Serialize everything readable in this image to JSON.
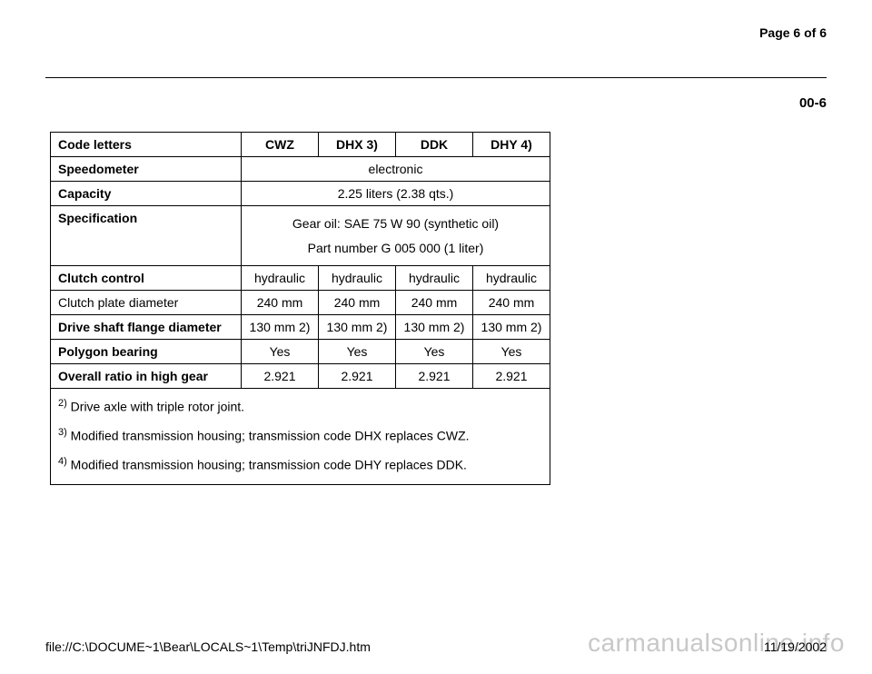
{
  "header": {
    "page_number": "Page 6 of 6",
    "section_number": "00-6"
  },
  "table": {
    "columns": {
      "label": "Code letters",
      "c1": "CWZ",
      "c2": "DHX 3)",
      "c3": "DDK",
      "c4": "DHY 4)"
    },
    "rows": {
      "speedometer": {
        "label": "Speedometer",
        "merged": "electronic"
      },
      "capacity": {
        "label": "Capacity",
        "merged": "2.25 liters (2.38 qts.)"
      },
      "specification": {
        "label": "Specification",
        "line1": "Gear oil: SAE 75 W 90 (synthetic oil)",
        "line2": "Part number G 005 000 (1 liter)"
      },
      "clutch_control": {
        "label": "Clutch control",
        "c1": "hydraulic",
        "c2": "hydraulic",
        "c3": "hydraulic",
        "c4": "hydraulic"
      },
      "clutch_plate": {
        "label": "Clutch plate diameter",
        "c1": "240 mm",
        "c2": "240 mm",
        "c3": "240 mm",
        "c4": "240 mm"
      },
      "drive_shaft": {
        "label": "Drive shaft flange diameter",
        "c1": "130 mm 2)",
        "c2": "130 mm 2)",
        "c3": "130 mm 2)",
        "c4": "130 mm 2)"
      },
      "polygon": {
        "label": "Polygon bearing",
        "c1": "Yes",
        "c2": "Yes",
        "c3": "Yes",
        "c4": "Yes"
      },
      "overall": {
        "label": "Overall ratio in high gear",
        "c1": "2.921",
        "c2": "2.921",
        "c3": "2.921",
        "c4": "2.921"
      }
    },
    "footnotes": {
      "f2_sup": "2)",
      "f2_text": " Drive axle with triple rotor joint.",
      "f3_sup": "3)",
      "f3_text": " Modified transmission housing; transmission code DHX replaces CWZ.",
      "f4_sup": "4)",
      "f4_text": " Modified transmission housing; transmission code DHY replaces DDK."
    }
  },
  "footer": {
    "path": "file://C:\\DOCUME~1\\Bear\\LOCALS~1\\Temp\\triJNFDJ.htm",
    "date": "11/19/2002"
  },
  "watermark": "carmanualsonline.info"
}
